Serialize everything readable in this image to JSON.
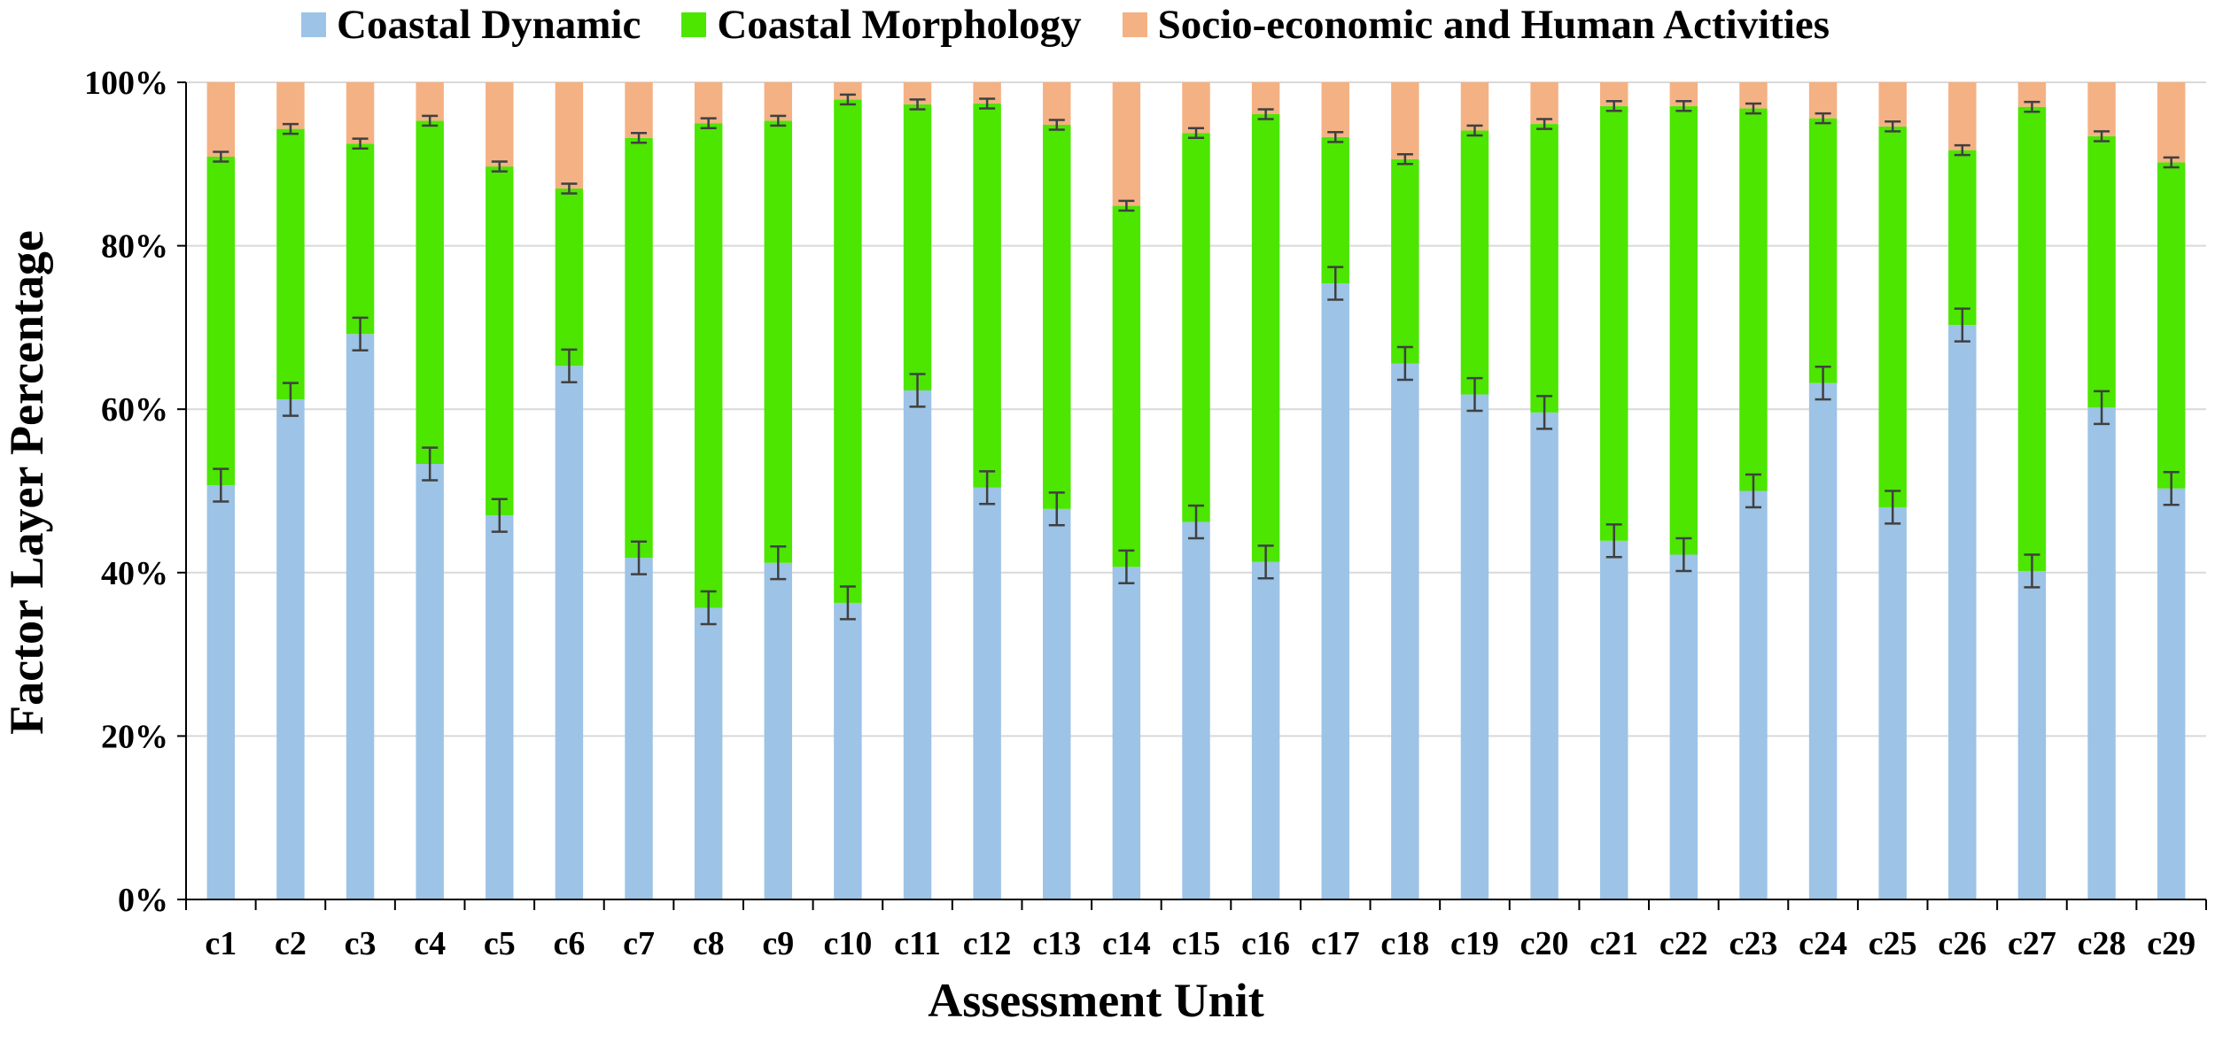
{
  "chart_data": {
    "type": "bar",
    "stacked": true,
    "title": "",
    "xlabel": "Assessment  Unit",
    "ylabel": "Factor Layer Percentage",
    "ylim": [
      0,
      100
    ],
    "yticks": [
      "0%",
      "20%",
      "40%",
      "60%",
      "80%",
      "100%"
    ],
    "grid": true,
    "legend_position": "top",
    "categories": [
      "c1",
      "c2",
      "c3",
      "c4",
      "c5",
      "c6",
      "c7",
      "c8",
      "c9",
      "c10",
      "c11",
      "c12",
      "c13",
      "c14",
      "c15",
      "c16",
      "c17",
      "c18",
      "c19",
      "c20",
      "c21",
      "c22",
      "c23",
      "c24",
      "c25",
      "c26",
      "c27",
      "c28",
      "c29"
    ],
    "series": [
      {
        "name": "Coastal  Dynamic",
        "color": "#9DC3E6",
        "values": [
          50.7,
          61.2,
          69.2,
          53.3,
          47.0,
          65.3,
          41.8,
          35.7,
          41.2,
          36.3,
          62.3,
          50.4,
          47.8,
          40.7,
          46.2,
          41.3,
          75.4,
          65.6,
          61.8,
          59.6,
          43.9,
          42.2,
          50.0,
          63.2,
          48.0,
          70.3,
          40.2,
          60.2,
          50.3
        ]
      },
      {
        "name": "Coastal  Morphology",
        "color": "#4CE600",
        "values": [
          40.2,
          33.1,
          23.3,
          42.0,
          42.7,
          21.7,
          51.4,
          59.3,
          54.1,
          61.6,
          35.0,
          47.0,
          47.0,
          44.2,
          47.6,
          54.8,
          17.9,
          25.0,
          32.3,
          35.3,
          53.2,
          54.9,
          46.8,
          32.4,
          46.6,
          21.4,
          56.8,
          33.2,
          39.9
        ]
      },
      {
        "name": "Socio-economic and Human  Activities",
        "color": "#F4B183",
        "values": [
          9.1,
          5.7,
          7.5,
          4.7,
          10.3,
          13.0,
          6.8,
          5.0,
          4.7,
          2.1,
          2.7,
          2.6,
          5.2,
          15.1,
          6.2,
          3.9,
          6.7,
          9.4,
          5.9,
          5.1,
          2.9,
          2.9,
          3.2,
          4.4,
          5.4,
          8.3,
          3.0,
          6.6,
          9.8
        ]
      }
    ],
    "error_bar_color": "#404040"
  }
}
